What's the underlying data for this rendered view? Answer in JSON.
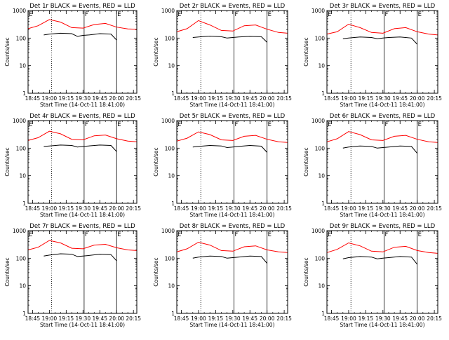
{
  "chart_data": [
    {
      "type": "line",
      "title": "Det 1r BLACK = Events, RED = LLD",
      "xlabel": "Start Time (14-Oct-11 18:41:00)",
      "ylabel": "Counts/sec",
      "y_scale": "log",
      "ylim": [
        1,
        1000
      ],
      "y_ticks": [
        "1",
        "10",
        "100",
        "1000"
      ],
      "xlim": [
        "18:41",
        "20:18"
      ],
      "x_ticks": [
        "18:45",
        "19:00",
        "19:15",
        "19:30",
        "19:45",
        "20:00",
        "20:15"
      ],
      "markers": [
        {
          "label": "",
          "time": "19:02",
          "style": "dotted"
        },
        {
          "label": "F",
          "time": "19:31",
          "style": "solid"
        },
        {
          "label": "E",
          "time": "20:00",
          "style": "solid"
        }
      ],
      "corner_label": "E",
      "series": [
        {
          "name": "Events",
          "color": "#000000",
          "gaps": [
            [
              "19:59",
              "20:03"
            ]
          ],
          "x": [
            "18:55",
            "19:00",
            "19:10",
            "19:20",
            "19:25",
            "19:30",
            "19:35",
            "19:45",
            "19:55",
            "20:00"
          ],
          "y": [
            130,
            140,
            150,
            145,
            115,
            125,
            130,
            145,
            140,
            85
          ]
        },
        {
          "name": "LLD",
          "color": "#ff0000",
          "x": [
            "18:41",
            "18:50",
            "19:00",
            "19:10",
            "19:20",
            "19:30",
            "19:40",
            "19:50",
            "20:00",
            "20:10",
            "20:18"
          ],
          "y": [
            220,
            280,
            470,
            380,
            240,
            230,
            310,
            340,
            250,
            215,
            210
          ]
        }
      ]
    },
    {
      "type": "line",
      "title": "Det 2r BLACK = Events, RED = LLD",
      "xlabel": "Start Time (14-Oct-11 18:41:00)",
      "ylabel": "Counts/sec",
      "y_scale": "log",
      "ylim": [
        1,
        1000
      ],
      "y_ticks": [
        "1",
        "10",
        "100",
        "1000"
      ],
      "xlim": [
        "18:41",
        "20:18"
      ],
      "x_ticks": [
        "18:45",
        "19:00",
        "19:15",
        "19:30",
        "19:45",
        "20:00",
        "20:15"
      ],
      "markers": [
        {
          "label": "",
          "time": "19:02",
          "style": "dotted"
        },
        {
          "label": "F",
          "time": "19:31",
          "style": "solid"
        },
        {
          "label": "E",
          "time": "20:00",
          "style": "solid"
        }
      ],
      "corner_label": "E",
      "series": [
        {
          "name": "Events",
          "color": "#000000",
          "gaps": [
            [
              "19:59",
              "20:03"
            ]
          ],
          "x": [
            "18:55",
            "19:00",
            "19:10",
            "19:20",
            "19:25",
            "19:30",
            "19:35",
            "19:45",
            "19:55",
            "20:00"
          ],
          "y": [
            105,
            110,
            118,
            112,
            100,
            105,
            110,
            115,
            112,
            70
          ]
        },
        {
          "name": "LLD",
          "color": "#ff0000",
          "x": [
            "18:41",
            "18:50",
            "19:00",
            "19:10",
            "19:20",
            "19:30",
            "19:40",
            "19:50",
            "20:00",
            "20:10",
            "20:18"
          ],
          "y": [
            170,
            220,
            430,
            300,
            190,
            180,
            280,
            300,
            210,
            160,
            150
          ]
        }
      ]
    },
    {
      "type": "line",
      "title": "Det 3r BLACK = Events, RED = LLD",
      "xlabel": "Start Time (14-Oct-11 18:41:00)",
      "ylabel": "Counts/sec",
      "y_scale": "log",
      "ylim": [
        1,
        1000
      ],
      "y_ticks": [
        "1",
        "10",
        "100",
        "1000"
      ],
      "xlim": [
        "18:41",
        "20:18"
      ],
      "x_ticks": [
        "18:45",
        "19:00",
        "19:15",
        "19:30",
        "19:45",
        "20:00",
        "20:15"
      ],
      "markers": [
        {
          "label": "",
          "time": "19:02",
          "style": "dotted"
        },
        {
          "label": "F",
          "time": "19:31",
          "style": "solid"
        },
        {
          "label": "E",
          "time": "20:00",
          "style": "solid"
        }
      ],
      "corner_label": "E",
      "series": [
        {
          "name": "Events",
          "color": "#000000",
          "gaps": [
            [
              "19:59",
              "20:03"
            ]
          ],
          "x": [
            "18:55",
            "19:00",
            "19:10",
            "19:20",
            "19:25",
            "19:30",
            "19:35",
            "19:45",
            "19:55",
            "20:00"
          ],
          "y": [
            95,
            100,
            110,
            105,
            95,
            100,
            105,
            110,
            100,
            60
          ]
        },
        {
          "name": "LLD",
          "color": "#ff0000",
          "x": [
            "18:41",
            "18:50",
            "19:00",
            "19:10",
            "19:20",
            "19:30",
            "19:40",
            "19:50",
            "20:00",
            "20:10",
            "20:18"
          ],
          "y": [
            140,
            170,
            320,
            240,
            160,
            150,
            220,
            240,
            170,
            140,
            130
          ]
        }
      ]
    },
    {
      "type": "line",
      "title": "Det 4r BLACK = Events, RED = LLD",
      "xlabel": "Start Time (14-Oct-11 18:41:00)",
      "ylabel": "Counts/sec",
      "y_scale": "log",
      "ylim": [
        1,
        1000
      ],
      "y_ticks": [
        "1",
        "10",
        "100",
        "1000"
      ],
      "xlim": [
        "18:41",
        "20:18"
      ],
      "x_ticks": [
        "18:45",
        "19:00",
        "19:15",
        "19:30",
        "19:45",
        "20:00",
        "20:15"
      ],
      "markers": [
        {
          "label": "",
          "time": "19:02",
          "style": "dotted"
        },
        {
          "label": "F",
          "time": "19:31",
          "style": "solid"
        },
        {
          "label": "E",
          "time": "20:00",
          "style": "solid"
        }
      ],
      "corner_label": "E",
      "series": [
        {
          "name": "Events",
          "color": "#000000",
          "gaps": [
            [
              "19:59",
              "20:03"
            ]
          ],
          "x": [
            "18:55",
            "19:00",
            "19:10",
            "19:20",
            "19:25",
            "19:30",
            "19:35",
            "19:45",
            "19:55",
            "20:00"
          ],
          "y": [
            115,
            120,
            130,
            125,
            110,
            115,
            120,
            130,
            125,
            75
          ]
        },
        {
          "name": "LLD",
          "color": "#ff0000",
          "x": [
            "18:41",
            "18:50",
            "19:00",
            "19:10",
            "19:20",
            "19:30",
            "19:40",
            "19:50",
            "20:00",
            "20:10",
            "20:18"
          ],
          "y": [
            190,
            240,
            410,
            330,
            210,
            200,
            280,
            300,
            220,
            180,
            170
          ]
        }
      ]
    },
    {
      "type": "line",
      "title": "Det 5r BLACK = Events, RED = LLD",
      "xlabel": "Start Time (14-Oct-11 18:41:00)",
      "ylabel": "Counts/sec",
      "y_scale": "log",
      "ylim": [
        1,
        1000
      ],
      "y_ticks": [
        "1",
        "10",
        "100",
        "1000"
      ],
      "xlim": [
        "18:41",
        "20:18"
      ],
      "x_ticks": [
        "18:45",
        "19:00",
        "19:15",
        "19:30",
        "19:45",
        "20:00",
        "20:15"
      ],
      "markers": [
        {
          "label": "",
          "time": "19:02",
          "style": "dotted"
        },
        {
          "label": "F",
          "time": "19:31",
          "style": "solid"
        },
        {
          "label": "E",
          "time": "20:00",
          "style": "solid"
        }
      ],
      "corner_label": "E",
      "series": [
        {
          "name": "Events",
          "color": "#000000",
          "gaps": [
            [
              "19:59",
              "20:03"
            ]
          ],
          "x": [
            "18:55",
            "19:00",
            "19:10",
            "19:20",
            "19:25",
            "19:30",
            "19:35",
            "19:45",
            "19:55",
            "20:00"
          ],
          "y": [
            110,
            115,
            125,
            120,
            105,
            110,
            115,
            125,
            118,
            70
          ]
        },
        {
          "name": "LLD",
          "color": "#ff0000",
          "x": [
            "18:41",
            "18:50",
            "19:00",
            "19:10",
            "19:20",
            "19:30",
            "19:40",
            "19:50",
            "20:00",
            "20:10",
            "20:18"
          ],
          "y": [
            180,
            230,
            390,
            310,
            200,
            190,
            270,
            290,
            210,
            170,
            160
          ]
        }
      ]
    },
    {
      "type": "line",
      "title": "Det 6r BLACK = Events, RED = LLD",
      "xlabel": "Start Time (14-Oct-11 18:41:00)",
      "ylabel": "Counts/sec",
      "y_scale": "log",
      "ylim": [
        1,
        1000
      ],
      "y_ticks": [
        "1",
        "10",
        "100",
        "1000"
      ],
      "xlim": [
        "18:41",
        "20:18"
      ],
      "x_ticks": [
        "18:45",
        "19:00",
        "19:15",
        "19:30",
        "19:45",
        "20:00",
        "20:15"
      ],
      "markers": [
        {
          "label": "",
          "time": "19:02",
          "style": "dotted"
        },
        {
          "label": "F",
          "time": "19:31",
          "style": "solid"
        },
        {
          "label": "E",
          "time": "20:00",
          "style": "solid"
        }
      ],
      "corner_label": "E",
      "series": [
        {
          "name": "Events",
          "color": "#000000",
          "gaps": [
            [
              "19:59",
              "20:03"
            ]
          ],
          "x": [
            "18:55",
            "19:00",
            "19:10",
            "19:20",
            "19:25",
            "19:30",
            "19:35",
            "19:45",
            "19:55",
            "20:00"
          ],
          "y": [
            100,
            110,
            120,
            115,
            100,
            105,
            110,
            120,
            115,
            65
          ]
        },
        {
          "name": "LLD",
          "color": "#ff0000",
          "x": [
            "18:41",
            "18:50",
            "19:00",
            "19:10",
            "19:20",
            "19:30",
            "19:40",
            "19:50",
            "20:00",
            "20:10",
            "20:18"
          ],
          "y": [
            170,
            220,
            400,
            310,
            200,
            190,
            270,
            290,
            210,
            170,
            160
          ]
        }
      ]
    },
    {
      "type": "line",
      "title": "Det 7r BLACK = Events, RED = LLD",
      "xlabel": "Start Time (14-Oct-11 18:41:00)",
      "ylabel": "Counts/sec",
      "y_scale": "log",
      "ylim": [
        1,
        1000
      ],
      "y_ticks": [
        "1",
        "10",
        "100",
        "1000"
      ],
      "xlim": [
        "18:41",
        "20:18"
      ],
      "x_ticks": [
        "18:45",
        "19:00",
        "19:15",
        "19:30",
        "19:45",
        "20:00",
        "20:15"
      ],
      "markers": [
        {
          "label": "",
          "time": "19:02",
          "style": "dotted"
        },
        {
          "label": "F",
          "time": "19:31",
          "style": "solid"
        },
        {
          "label": "E",
          "time": "20:00",
          "style": "solid"
        }
      ],
      "corner_label": "E",
      "series": [
        {
          "name": "Events",
          "color": "#000000",
          "gaps": [
            [
              "19:59",
              "20:03"
            ]
          ],
          "x": [
            "18:55",
            "19:00",
            "19:10",
            "19:20",
            "19:25",
            "19:30",
            "19:35",
            "19:45",
            "19:55",
            "20:00"
          ],
          "y": [
            120,
            130,
            145,
            140,
            115,
            120,
            125,
            140,
            135,
            80
          ]
        },
        {
          "name": "LLD",
          "color": "#ff0000",
          "x": [
            "18:41",
            "18:50",
            "19:00",
            "19:10",
            "19:20",
            "19:30",
            "19:40",
            "19:50",
            "20:00",
            "20:10",
            "20:18"
          ],
          "y": [
            200,
            250,
            440,
            360,
            230,
            220,
            300,
            320,
            240,
            200,
            190
          ]
        }
      ]
    },
    {
      "type": "line",
      "title": "Det 8r BLACK = Events, RED = LLD",
      "xlabel": "Start Time (14-Oct-11 18:41:00)",
      "ylabel": "Counts/sec",
      "y_scale": "log",
      "ylim": [
        1,
        1000
      ],
      "y_ticks": [
        "1",
        "10",
        "100",
        "1000"
      ],
      "xlim": [
        "18:41",
        "20:18"
      ],
      "x_ticks": [
        "18:45",
        "19:00",
        "19:15",
        "19:30",
        "19:45",
        "20:00",
        "20:15"
      ],
      "markers": [
        {
          "label": "",
          "time": "19:02",
          "style": "dotted"
        },
        {
          "label": "F",
          "time": "19:31",
          "style": "solid"
        },
        {
          "label": "E",
          "time": "20:00",
          "style": "solid"
        }
      ],
      "corner_label": "E",
      "series": [
        {
          "name": "Events",
          "color": "#000000",
          "gaps": [
            [
              "19:59",
              "20:03"
            ]
          ],
          "x": [
            "18:55",
            "19:00",
            "19:10",
            "19:20",
            "19:25",
            "19:30",
            "19:35",
            "19:45",
            "19:55",
            "20:00"
          ],
          "y": [
            100,
            110,
            120,
            115,
            100,
            105,
            110,
            120,
            115,
            65
          ]
        },
        {
          "name": "LLD",
          "color": "#ff0000",
          "x": [
            "18:41",
            "18:50",
            "19:00",
            "19:10",
            "19:20",
            "19:30",
            "19:40",
            "19:50",
            "20:00",
            "20:10",
            "20:18"
          ],
          "y": [
            170,
            220,
            380,
            300,
            190,
            180,
            260,
            280,
            200,
            170,
            160
          ]
        }
      ]
    },
    {
      "type": "line",
      "title": "Det 9r BLACK = Events, RED = LLD",
      "xlabel": "Start Time (14-Oct-11 18:41:00)",
      "ylabel": "Counts/sec",
      "y_scale": "log",
      "ylim": [
        1,
        1000
      ],
      "y_ticks": [
        "1",
        "10",
        "100",
        "1000"
      ],
      "xlim": [
        "18:41",
        "20:18"
      ],
      "x_ticks": [
        "18:45",
        "19:00",
        "19:15",
        "19:30",
        "19:45",
        "20:00",
        "20:15"
      ],
      "markers": [
        {
          "label": "",
          "time": "19:02",
          "style": "dotted"
        },
        {
          "label": "F",
          "time": "19:31",
          "style": "solid"
        },
        {
          "label": "E",
          "time": "20:00",
          "style": "solid"
        }
      ],
      "corner_label": "E",
      "series": [
        {
          "name": "Events",
          "color": "#000000",
          "gaps": [
            [
              "19:59",
              "20:03"
            ]
          ],
          "x": [
            "18:55",
            "19:00",
            "19:10",
            "19:20",
            "19:25",
            "19:30",
            "19:35",
            "19:45",
            "19:55",
            "20:00"
          ],
          "y": [
            95,
            105,
            115,
            110,
            95,
            100,
            105,
            115,
            110,
            60
          ]
        },
        {
          "name": "LLD",
          "color": "#ff0000",
          "x": [
            "18:41",
            "18:50",
            "19:00",
            "19:10",
            "19:20",
            "19:30",
            "19:40",
            "19:50",
            "20:00",
            "20:10",
            "20:18"
          ],
          "y": [
            160,
            210,
            360,
            280,
            180,
            170,
            250,
            270,
            190,
            160,
            150
          ]
        }
      ]
    }
  ]
}
